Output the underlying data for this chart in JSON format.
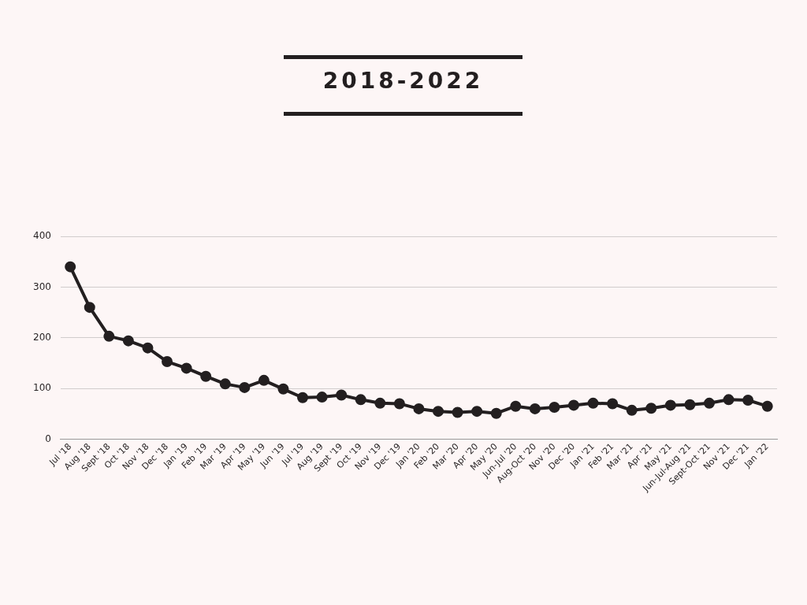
{
  "chart_data": {
    "type": "line",
    "title": "2018-2022",
    "categories": [
      "Jul '18",
      "Aug '18",
      "Sept '18",
      "Oct '18",
      "Nov '18",
      "Dec '18",
      "Jan '19",
      "Feb '19",
      "Mar '19",
      "Apr '19",
      "May '19",
      "Jun '19",
      "Jul '19",
      "Aug '19",
      "Sept '19",
      "Oct '19",
      "Nov '19",
      "Dec '19",
      "Jan '20",
      "Feb '20",
      "Mar '20",
      "Apr '20",
      "May '20",
      "Jun-Jul '20",
      "Aug-Oct '20",
      "Nov '20",
      "Dec '20",
      "Jan '21",
      "Feb '21",
      "Mar '21",
      "Apr '21",
      "May '21",
      "Jun-Jul-Aug '21",
      "Sept-Oct '21",
      "Nov '21",
      "Dec '21",
      "Jan '22"
    ],
    "series": [
      {
        "color": "#231f20",
        "values": [
          340,
          260,
          203,
          194,
          180,
          153,
          140,
          124,
          109,
          102,
          116,
          99,
          82,
          83,
          87,
          78,
          71,
          70,
          60,
          55,
          53,
          55,
          51,
          65,
          60,
          63,
          67,
          71,
          70,
          57,
          61,
          67,
          68,
          71,
          78,
          77,
          65
        ]
      }
    ],
    "ylim": [
      0,
      400
    ],
    "yticks": [
      0,
      100,
      200,
      300,
      400
    ],
    "grid": "y",
    "legend": false,
    "marker": "circle",
    "line_style": "solid"
  }
}
